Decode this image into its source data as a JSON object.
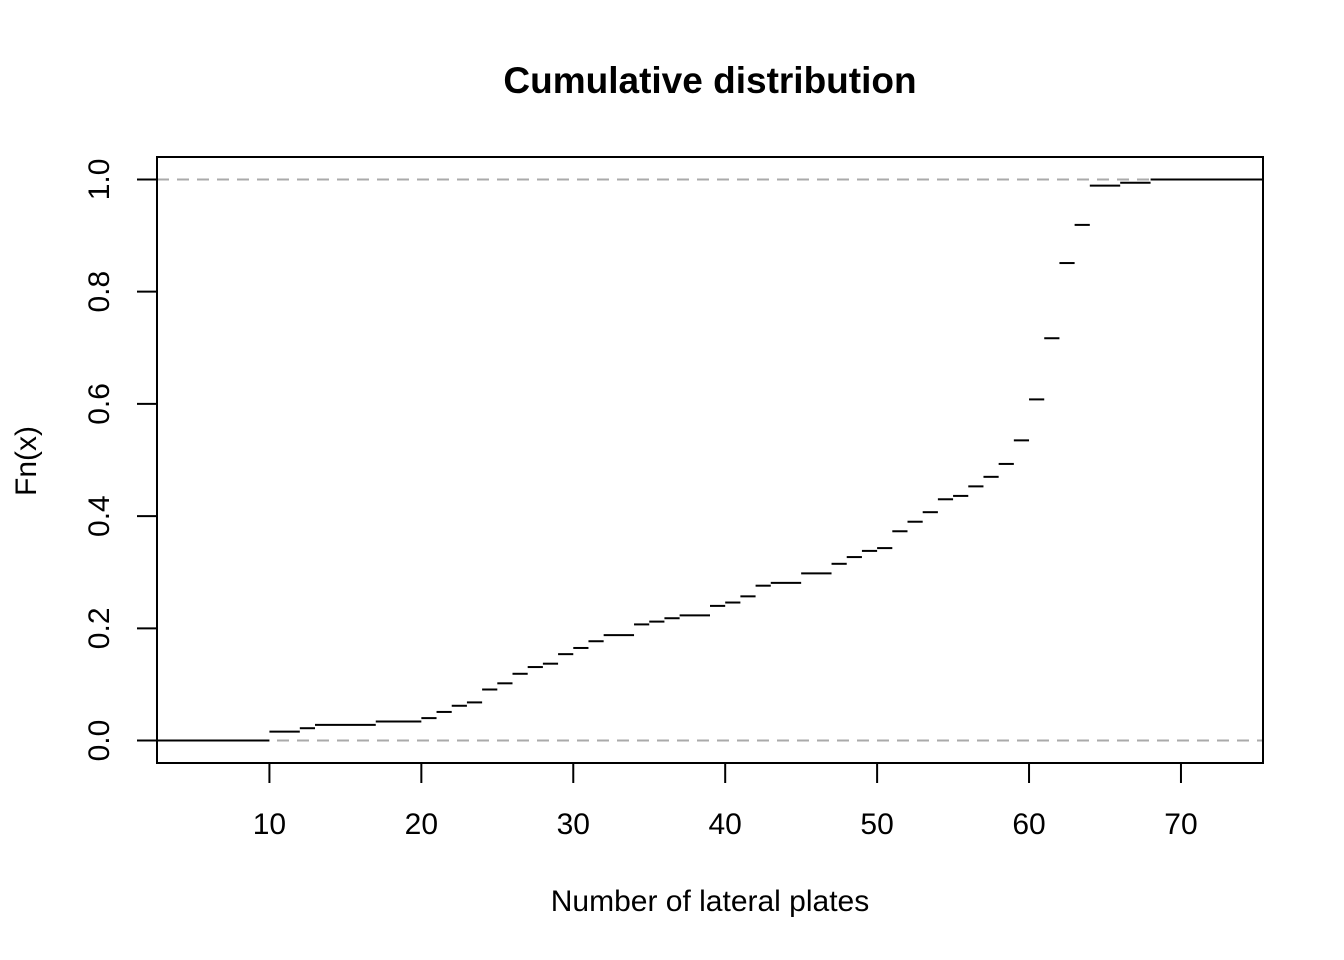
{
  "chart_data": {
    "type": "line",
    "subtype": "ecdf-step",
    "title": "Cumulative distribution",
    "xlabel": "Number of lateral plates",
    "ylabel": "Fn(x)",
    "xlim": [
      2.6,
      75.4
    ],
    "ylim": [
      -0.04,
      1.04
    ],
    "x_ticks": [
      10,
      20,
      30,
      40,
      50,
      60,
      70
    ],
    "y_ticks": [
      0.0,
      0.2,
      0.4,
      0.6,
      0.8,
      1.0
    ],
    "y_tick_labels": [
      "0.0",
      "0.2",
      "0.4",
      "0.6",
      "0.8",
      "1.0"
    ],
    "reference_lines": [
      0,
      1
    ],
    "grid": false,
    "series": [
      {
        "x": [
          10,
          12,
          13,
          17,
          20,
          21,
          22,
          23,
          24,
          25,
          26,
          27,
          28,
          29,
          30,
          31,
          32,
          34,
          35,
          36,
          37,
          39,
          40,
          41,
          42,
          43,
          45,
          47,
          48,
          49,
          50,
          51,
          52,
          53,
          54,
          55,
          56,
          57,
          58,
          59,
          60,
          61,
          62,
          63,
          64,
          66,
          68
        ],
        "y": [
          0.016,
          0.022,
          0.028,
          0.034,
          0.04,
          0.051,
          0.062,
          0.068,
          0.091,
          0.102,
          0.119,
          0.131,
          0.137,
          0.154,
          0.165,
          0.177,
          0.188,
          0.207,
          0.212,
          0.218,
          0.223,
          0.24,
          0.246,
          0.257,
          0.276,
          0.281,
          0.298,
          0.315,
          0.327,
          0.338,
          0.343,
          0.373,
          0.39,
          0.407,
          0.43,
          0.436,
          0.453,
          0.47,
          0.493,
          0.535,
          0.608,
          0.717,
          0.851,
          0.919,
          0.989,
          0.994,
          1.0
        ]
      }
    ]
  }
}
